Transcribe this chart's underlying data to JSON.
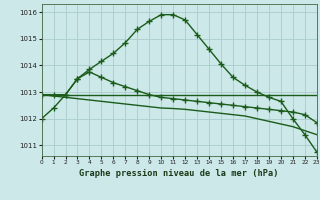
{
  "title": "Graphe pression niveau de la mer (hPa)",
  "bg_color": "#cce8e8",
  "grid_color": "#aacccc",
  "line_color": "#1a5c1a",
  "x_values": [
    0,
    1,
    2,
    3,
    4,
    5,
    6,
    7,
    8,
    9,
    10,
    11,
    12,
    13,
    14,
    15,
    16,
    17,
    18,
    19,
    20,
    21,
    22,
    23
  ],
  "series1": [
    1012.0,
    1012.4,
    1012.9,
    1013.5,
    1013.85,
    1014.15,
    1014.45,
    1014.85,
    1015.35,
    1015.65,
    1015.9,
    1015.9,
    1015.7,
    1015.15,
    1014.6,
    1014.05,
    1013.55,
    1013.25,
    1013.0,
    1012.8,
    1012.65,
    1012.0,
    1011.4,
    1010.75
  ],
  "series2": [
    1012.9,
    1012.9,
    1012.9,
    1013.5,
    1013.75,
    1013.55,
    1013.35,
    1013.2,
    1013.05,
    1012.9,
    1012.8,
    1012.75,
    1012.7,
    1012.65,
    1012.6,
    1012.55,
    1012.5,
    1012.45,
    1012.4,
    1012.35,
    1012.3,
    1012.25,
    1012.15,
    1011.85
  ],
  "series3": [
    1012.9,
    1012.9,
    1012.9,
    1012.9,
    1012.9,
    1012.9,
    1012.9,
    1012.9,
    1012.9,
    1012.9,
    1012.9,
    1012.9,
    1012.9,
    1012.9,
    1012.9,
    1012.9,
    1012.9,
    1012.9,
    1012.9,
    1012.9,
    1012.9,
    1012.9,
    1012.9,
    1012.9
  ],
  "series4": [
    1012.9,
    1012.85,
    1012.8,
    1012.75,
    1012.7,
    1012.65,
    1012.6,
    1012.55,
    1012.5,
    1012.45,
    1012.4,
    1012.38,
    1012.35,
    1012.3,
    1012.25,
    1012.2,
    1012.15,
    1012.1,
    1012.0,
    1011.9,
    1011.8,
    1011.7,
    1011.55,
    1011.4
  ],
  "ylim": [
    1010.6,
    1016.3
  ],
  "yticks": [
    1011,
    1012,
    1013,
    1014,
    1015,
    1016
  ],
  "xlim": [
    0,
    23
  ],
  "marker": "+",
  "marker_size": 4.5,
  "linewidth": 1.0
}
